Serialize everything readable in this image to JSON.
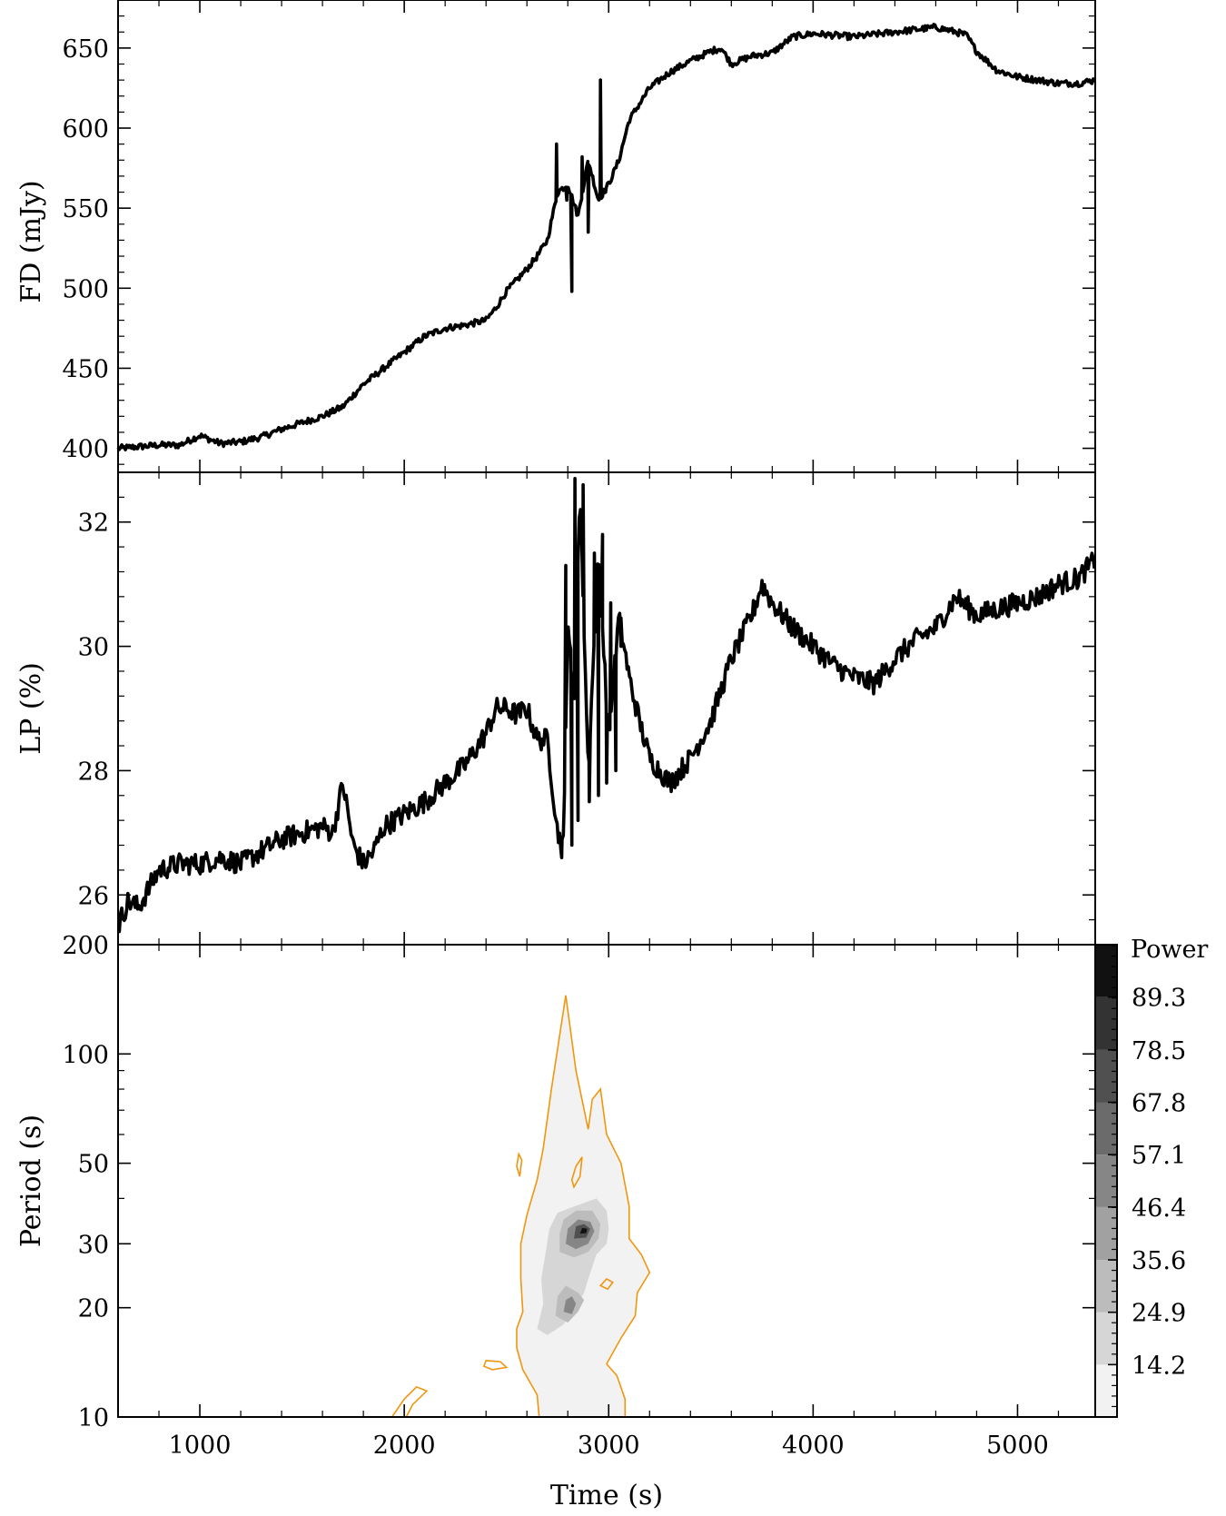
{
  "chart_data": [
    {
      "type": "line",
      "panel": "top",
      "ylabel": "FD (mJy)",
      "xlim": [
        600,
        5380
      ],
      "ylim": [
        385,
        680
      ],
      "yticks": [
        400,
        450,
        500,
        550,
        600,
        650
      ],
      "xticks": [
        1000,
        2000,
        3000,
        4000,
        5000
      ],
      "x": [
        600,
        700,
        800,
        900,
        1000,
        1100,
        1200,
        1300,
        1400,
        1500,
        1600,
        1700,
        1750,
        1800,
        1900,
        2000,
        2100,
        2200,
        2300,
        2400,
        2450,
        2500,
        2600,
        2650,
        2700,
        2750,
        2800,
        2850,
        2900,
        2950,
        3000,
        3050,
        3100,
        3200,
        3300,
        3400,
        3500,
        3550,
        3600,
        3700,
        3800,
        3900,
        4000,
        4200,
        4400,
        4600,
        4700,
        4750,
        4800,
        4900,
        5000,
        5100,
        5200,
        5300,
        5380
      ],
      "values": [
        400,
        401,
        402,
        402,
        408,
        403,
        404,
        407,
        412,
        416,
        420,
        426,
        433,
        440,
        450,
        460,
        470,
        475,
        477,
        480,
        488,
        498,
        512,
        520,
        530,
        560,
        565,
        545,
        580,
        555,
        565,
        580,
        605,
        625,
        635,
        642,
        648,
        650,
        640,
        645,
        647,
        657,
        659,
        657,
        660,
        663,
        660,
        658,
        648,
        636,
        632,
        630,
        628,
        628,
        630
      ],
      "spikes": [
        {
          "x": 2745,
          "y": 590
        },
        {
          "x": 2795,
          "y": 555
        },
        {
          "x": 2820,
          "y": 498
        },
        {
          "x": 2870,
          "y": 582
        },
        {
          "x": 2900,
          "y": 535
        },
        {
          "x": 2960,
          "y": 630
        },
        {
          "x": 2985,
          "y": 560
        }
      ]
    },
    {
      "type": "line",
      "panel": "middle",
      "ylabel": "LP (%)",
      "xlim": [
        600,
        5380
      ],
      "ylim": [
        25.2,
        32.8
      ],
      "yticks": [
        26,
        28,
        30,
        32
      ],
      "xticks": [
        1000,
        2000,
        3000,
        4000,
        5000
      ],
      "x": [
        600,
        650,
        700,
        800,
        900,
        1000,
        1100,
        1200,
        1300,
        1400,
        1500,
        1600,
        1650,
        1700,
        1750,
        1800,
        1850,
        1900,
        2000,
        2100,
        2200,
        2300,
        2400,
        2450,
        2500,
        2550,
        2600,
        2650,
        2700,
        2750,
        2780,
        2800,
        2830,
        2860,
        2900,
        2950,
        3000,
        3050,
        3100,
        3150,
        3200,
        3250,
        3300,
        3400,
        3500,
        3600,
        3700,
        3750,
        3800,
        3900,
        4000,
        4100,
        4200,
        4300,
        4400,
        4500,
        4600,
        4700,
        4800,
        4900,
        5000,
        5100,
        5200,
        5300,
        5380
      ],
      "values": [
        25.5,
        25.9,
        25.8,
        26.4,
        26.5,
        26.5,
        26.6,
        26.5,
        26.7,
        26.9,
        27.0,
        27.1,
        27.0,
        27.8,
        26.8,
        26.5,
        26.7,
        27.1,
        27.3,
        27.5,
        27.8,
        28.1,
        28.6,
        29.0,
        29.0,
        28.9,
        29.0,
        28.5,
        28.5,
        27.0,
        26.8,
        30.5,
        29.0,
        32.5,
        28.0,
        31.5,
        28.5,
        30.5,
        29.5,
        28.8,
        28.2,
        28.0,
        27.8,
        28.2,
        28.8,
        29.8,
        30.5,
        31.0,
        30.7,
        30.3,
        30.0,
        29.7,
        29.5,
        29.4,
        29.8,
        30.1,
        30.3,
        30.8,
        30.5,
        30.6,
        30.7,
        30.8,
        31.0,
        31.1,
        31.4
      ],
      "spikes": [
        {
          "x": 2770,
          "y": 26.6
        },
        {
          "x": 2790,
          "y": 31.3
        },
        {
          "x": 2820,
          "y": 26.8
        },
        {
          "x": 2835,
          "y": 32.7
        },
        {
          "x": 2850,
          "y": 27.2
        },
        {
          "x": 2875,
          "y": 32.6
        },
        {
          "x": 2905,
          "y": 27.5
        },
        {
          "x": 2930,
          "y": 31.5
        },
        {
          "x": 2950,
          "y": 27.6
        },
        {
          "x": 2970,
          "y": 31.8
        },
        {
          "x": 2990,
          "y": 27.8
        },
        {
          "x": 3010,
          "y": 30.7
        },
        {
          "x": 3035,
          "y": 28.0
        },
        {
          "x": 3060,
          "y": 30.0
        }
      ]
    },
    {
      "type": "heatmap",
      "panel": "bottom",
      "xlabel": "Time (s)",
      "ylabel": "Period (s)",
      "xlim": [
        600,
        5380
      ],
      "ylim": [
        10,
        200
      ],
      "yscale": "log",
      "yticks": [
        10,
        20,
        30,
        50,
        100,
        200
      ],
      "xticks": [
        1000,
        2000,
        3000,
        4000,
        5000
      ],
      "colorbar": {
        "title": "Power",
        "levels": [
          3.5,
          14.2,
          24.9,
          35.6,
          46.4,
          57.1,
          67.8,
          78.5,
          89.3,
          100.0
        ],
        "tick_labels": [
          "14.2",
          "24.9",
          "35.6",
          "46.4",
          "57.1",
          "67.8",
          "78.5",
          "89.3"
        ],
        "colors": [
          "#f2f2f2",
          "#d6d6d6",
          "#bcbcbc",
          "#a1a1a1",
          "#868686",
          "#6b6b6b",
          "#505050",
          "#333333",
          "#111111"
        ]
      },
      "contour_color": "#f0960f",
      "regions": [
        {
          "level": 0,
          "points": [
            [
              2660,
              10
            ],
            [
              2650,
              11.5
            ],
            [
              2580,
              13.5
            ],
            [
              2550,
              15.5
            ],
            [
              2550,
              17.5
            ],
            [
              2580,
              19.5
            ],
            [
              2570,
              24
            ],
            [
              2570,
              30
            ],
            [
              2600,
              36
            ],
            [
              2650,
              45
            ],
            [
              2680,
              55
            ],
            [
              2720,
              80
            ],
            [
              2790,
              145
            ],
            [
              2840,
              90
            ],
            [
              2900,
              62
            ],
            [
              2920,
              75
            ],
            [
              2960,
              80
            ],
            [
              2990,
              60
            ],
            [
              3060,
              50
            ],
            [
              3100,
              38
            ],
            [
              3100,
              31
            ],
            [
              3160,
              28
            ],
            [
              3200,
              25
            ],
            [
              3140,
              22
            ],
            [
              3130,
              19
            ],
            [
              3060,
              16.5
            ],
            [
              2990,
              14
            ],
            [
              3040,
              13
            ],
            [
              3080,
              11.2
            ],
            [
              3080,
              10
            ]
          ]
        },
        {
          "level": 1,
          "points": [
            [
              2650,
              17.5
            ],
            [
              2680,
              20.5
            ],
            [
              2670,
              24
            ],
            [
              2690,
              28
            ],
            [
              2710,
              33
            ],
            [
              2750,
              36.5
            ],
            [
              2830,
              38
            ],
            [
              2940,
              40
            ],
            [
              2990,
              37
            ],
            [
              3000,
              33
            ],
            [
              2990,
              30
            ],
            [
              2940,
              28
            ],
            [
              2900,
              24
            ],
            [
              2880,
              22
            ],
            [
              2830,
              19.8
            ],
            [
              2780,
              18
            ],
            [
              2700,
              16.8
            ]
          ]
        },
        {
          "level": 2,
          "points": [
            [
              2740,
              19
            ],
            [
              2750,
              21.5
            ],
            [
              2790,
              23
            ],
            [
              2850,
              22
            ],
            [
              2880,
              21
            ],
            [
              2850,
              19.5
            ],
            [
              2800,
              18.2
            ]
          ]
        },
        {
          "level": 2,
          "points": [
            [
              2760,
              28.5
            ],
            [
              2760,
              32
            ],
            [
              2780,
              35
            ],
            [
              2840,
              37
            ],
            [
              2920,
              37
            ],
            [
              2960,
              34
            ],
            [
              2950,
              31
            ],
            [
              2900,
              28.5
            ],
            [
              2830,
              27.5
            ]
          ]
        },
        {
          "level": 4,
          "points": [
            [
              2780,
              19.5
            ],
            [
              2790,
              21
            ],
            [
              2820,
              21.5
            ],
            [
              2840,
              20.5
            ],
            [
              2820,
              19.2
            ]
          ]
        },
        {
          "level": 4,
          "points": [
            [
              2790,
              30
            ],
            [
              2800,
              33
            ],
            [
              2850,
              35
            ],
            [
              2910,
              34.5
            ],
            [
              2930,
              32.5
            ],
            [
              2900,
              30
            ],
            [
              2840,
              29
            ]
          ]
        },
        {
          "level": 6,
          "points": [
            [
              2830,
              31
            ],
            [
              2840,
              33.5
            ],
            [
              2880,
              34
            ],
            [
              2910,
              33
            ],
            [
              2890,
              31.2
            ]
          ]
        },
        {
          "level": 8,
          "points": [
            [
              2860,
              32
            ],
            [
              2870,
              33.2
            ],
            [
              2895,
              33
            ],
            [
              2890,
              32.1
            ]
          ]
        }
      ],
      "outlines": [
        {
          "points": [
            [
              2660,
              10
            ],
            [
              2650,
              11.5
            ],
            [
              2580,
              13.5
            ],
            [
              2550,
              15.5
            ],
            [
              2550,
              17.5
            ],
            [
              2580,
              19.5
            ],
            [
              2570,
              24
            ],
            [
              2570,
              30
            ],
            [
              2600,
              36
            ],
            [
              2650,
              45
            ],
            [
              2680,
              55
            ],
            [
              2720,
              80
            ],
            [
              2790,
              145
            ],
            [
              2840,
              90
            ],
            [
              2900,
              62
            ],
            [
              2920,
              75
            ],
            [
              2960,
              80
            ],
            [
              2990,
              60
            ],
            [
              3060,
              50
            ],
            [
              3100,
              38
            ],
            [
              3100,
              31
            ],
            [
              3160,
              28
            ],
            [
              3200,
              25
            ],
            [
              3140,
              22
            ],
            [
              3130,
              19
            ],
            [
              3060,
              16.5
            ],
            [
              2990,
              14
            ],
            [
              3040,
              13
            ],
            [
              3080,
              11.2
            ],
            [
              3080,
              10
            ]
          ],
          "closed": false
        },
        {
          "points": [
            [
              2550,
              49
            ],
            [
              2560,
              53
            ],
            [
              2575,
              51
            ],
            [
              2565,
              46
            ]
          ],
          "closed": true
        },
        {
          "points": [
            [
              2390,
              13.8
            ],
            [
              2400,
              14.3
            ],
            [
              2470,
              14.2
            ],
            [
              2500,
              13.7
            ],
            [
              2430,
              13.5
            ]
          ],
          "closed": true
        },
        {
          "points": [
            [
              2960,
              23
            ],
            [
              2990,
              24
            ],
            [
              3020,
              23.5
            ],
            [
              2995,
              22.5
            ]
          ],
          "closed": true
        },
        {
          "points": [
            [
              2820,
              45
            ],
            [
              2840,
              49
            ],
            [
              2870,
              52
            ],
            [
              2860,
              46
            ],
            [
              2830,
              43
            ]
          ],
          "closed": true
        },
        {
          "points": [
            [
              1940,
              10
            ],
            [
              2000,
              11.2
            ],
            [
              2060,
              12.1
            ],
            [
              2110,
              11.8
            ],
            [
              2040,
              10.8
            ],
            [
              2010,
              10
            ]
          ],
          "closed": false
        }
      ]
    }
  ]
}
